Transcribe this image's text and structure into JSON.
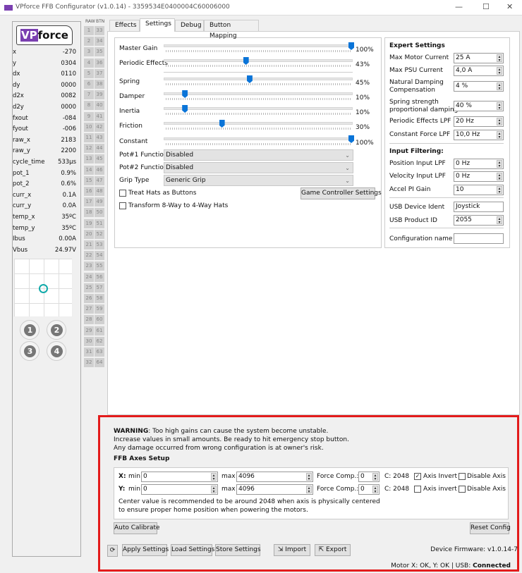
{
  "window": {
    "title": "VPforce FFB Configurator (v1.0.14) - 3359534E0400004C60006000",
    "minimize": "—",
    "maximize": "☐",
    "close": "✕"
  },
  "logo": {
    "text_vp": "VP",
    "text_force": "force"
  },
  "stats": [
    [
      "x",
      "-270"
    ],
    [
      "y",
      "0304"
    ],
    [
      "dx",
      "0110"
    ],
    [
      "dy",
      "0000"
    ],
    [
      "d2x",
      "0082"
    ],
    [
      "d2y",
      "0000"
    ],
    [
      "fxout",
      "-084"
    ],
    [
      "fyout",
      "-006"
    ],
    [
      "raw_x",
      "2183"
    ],
    [
      "raw_y",
      "2200"
    ],
    [
      "cycle_time",
      "533µs"
    ],
    [
      "pot_1",
      "0.9%"
    ],
    [
      "pot_2",
      "0.6%"
    ],
    [
      "curr_x",
      "0.1A"
    ],
    [
      "curr_y",
      "0.0A"
    ],
    [
      "temp_x",
      "35ºC"
    ],
    [
      "temp_y",
      "35ºC"
    ],
    [
      "Ibus",
      "0.00A"
    ],
    [
      "Vbus",
      "24.97V"
    ]
  ],
  "hat_buttons": [
    "1",
    "2",
    "3",
    "4"
  ],
  "button_grid": {
    "raw_header": "RAW",
    "btn_header": "BTN"
  },
  "tabs": [
    "Effects",
    "Settings",
    "Debug",
    "Button Mapping"
  ],
  "active_tab": "Settings",
  "sliders": [
    {
      "label": "Master Gain",
      "value": 100,
      "text": "100%"
    },
    {
      "label": "Periodic Effects",
      "value": 43,
      "text": "43%"
    },
    {
      "label": "Spring",
      "value": 45,
      "text": "45%"
    },
    {
      "label": "Damper",
      "value": 10,
      "text": "10%"
    },
    {
      "label": "Inertia",
      "value": 10,
      "text": "10%"
    },
    {
      "label": "Friction",
      "value": 30,
      "text": "30%"
    },
    {
      "label": "Constant",
      "value": 100,
      "text": "100%"
    }
  ],
  "combos": [
    {
      "label": "Pot#1 Function",
      "value": "Disabled"
    },
    {
      "label": "Pot#2 Function",
      "value": "Disabled"
    },
    {
      "label": "Grip Type",
      "value": "Generic Grip"
    }
  ],
  "checks": [
    {
      "label": "Treat Hats as Buttons",
      "checked": false
    },
    {
      "label": "Transform 8-Way to 4-Way Hats",
      "checked": false
    }
  ],
  "game_controller_settings": "Game Controller Settings",
  "expert": {
    "title": "Expert Settings",
    "rows": [
      {
        "label": "Max Motor Current",
        "value": "25 A"
      },
      {
        "label": "Max PSU Current",
        "value": "4,0 A"
      },
      {
        "label": "Natural Damping\nCompensation",
        "value": "4 %"
      },
      {
        "label": "Spring strength\nproportional damping",
        "value": "40 %"
      },
      {
        "label": "Periodic Effects LPF",
        "value": "20 Hz"
      },
      {
        "label": "Constant Force LPF",
        "value": "10,0 Hz"
      }
    ],
    "filter_title": "Input Filtering:",
    "filter_rows": [
      {
        "label": "Position Input LPF",
        "value": "0 Hz"
      },
      {
        "label": "Velocity Input LPF",
        "value": "0 Hz"
      },
      {
        "label": "Accel PI Gain",
        "value": "10"
      }
    ],
    "usb_ident_label": "USB Device Ident",
    "usb_ident": "Joystick",
    "usb_pid_label": "USB Product ID",
    "usb_pid": "2055",
    "config_name_label": "Configuration name",
    "config_name": ""
  },
  "warning": {
    "bold": "WARNING",
    "line1": ": Too high gains can cause the system become unstable.",
    "line2": "Increase values in small amounts. Be ready to hit emergency stop button.",
    "line3": "Any damage occurred from wrong configuration is at owner's risk."
  },
  "axes": {
    "title": "FFB Axes Setup",
    "rows": [
      {
        "axis": "X:",
        "min_label": "min",
        "min": "0",
        "max_label": "max",
        "max": "4096",
        "fc_label": "Force Comp.:",
        "fc": "0",
        "center": "C:  2048",
        "invert_label": "Axis Invert",
        "invert": true,
        "disable_label": "Disable Axis",
        "disable": false
      },
      {
        "axis": "Y:",
        "min_label": "min",
        "min": "0",
        "max_label": "max",
        "max": "4096",
        "fc_label": "Force Comp.:",
        "fc": "0",
        "center": "C:  2048",
        "invert_label": "Axis invert",
        "invert": false,
        "disable_label": "Disable Axis",
        "disable": false
      }
    ],
    "note1": "Center value is recommended to be around 2048 when axis is physically centered",
    "note2": "to ensure proper home position when powering the motors."
  },
  "buttons": {
    "auto_calibrate": "Auto Calibrate",
    "reset_config": "Reset Config",
    "refresh": "⟳",
    "apply": "Apply Settings",
    "load": "Load Settings",
    "store": "Store Settings",
    "import": "Import",
    "export": "Export"
  },
  "firmware": "Device Firmware:  v1.0.14-7",
  "status": {
    "text": "Motor X: OK, Y: OK | USB: ",
    "usb": "Connected"
  }
}
